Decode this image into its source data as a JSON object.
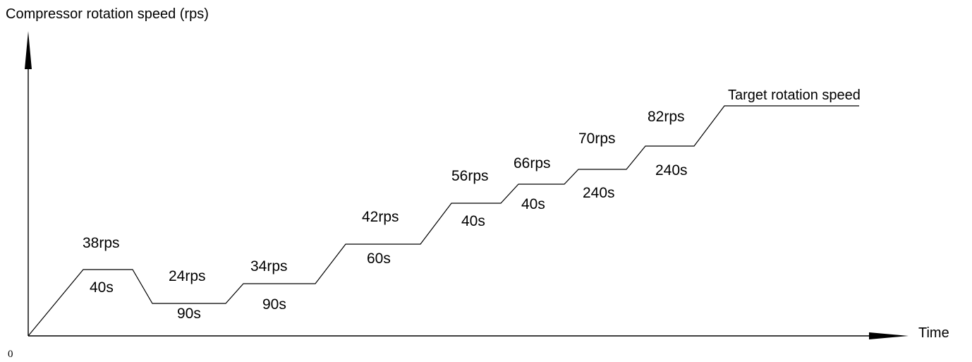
{
  "axes": {
    "y_label": "Compressor rotation speed (rps)",
    "x_label": "Time",
    "origin": "0"
  },
  "target_label": "Target rotation speed",
  "stages": [
    {
      "speed": "38rps",
      "duration": "40s"
    },
    {
      "speed": "24rps",
      "duration": "90s"
    },
    {
      "speed": "34rps",
      "duration": "90s"
    },
    {
      "speed": "42rps",
      "duration": "60s"
    },
    {
      "speed": "56rps",
      "duration": "40s"
    },
    {
      "speed": "66rps",
      "duration": "40s"
    },
    {
      "speed": "70rps",
      "duration": "240s"
    },
    {
      "speed": "82rps",
      "duration": "240s"
    }
  ]
}
